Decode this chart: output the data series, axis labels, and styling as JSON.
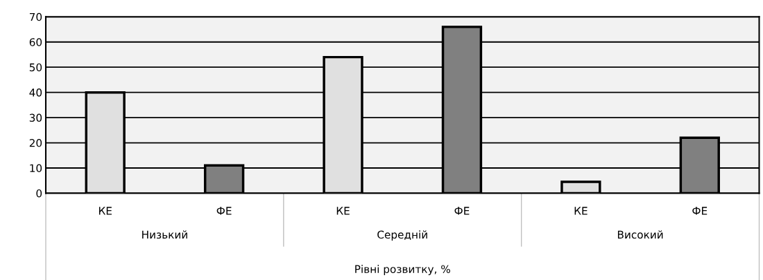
{
  "chart_data": {
    "type": "bar",
    "xlabel": "Рівні розвитку, %",
    "categories": [
      "КЕ",
      "ФЕ",
      "КЕ",
      "ФЕ",
      "КЕ",
      "ФЕ"
    ],
    "values": [
      40,
      11,
      54,
      66,
      4.5,
      22
    ],
    "colors": [
      "#e0e0e0",
      "#808080",
      "#e0e0e0",
      "#808080",
      "#e0e0e0",
      "#808080"
    ],
    "annotations": [
      "Низький",
      "Середній",
      "Високий"
    ],
    "ylim": [
      0,
      70
    ],
    "yticks": [
      0,
      10,
      20,
      30,
      40,
      50,
      60,
      70
    ],
    "grid": "y"
  }
}
